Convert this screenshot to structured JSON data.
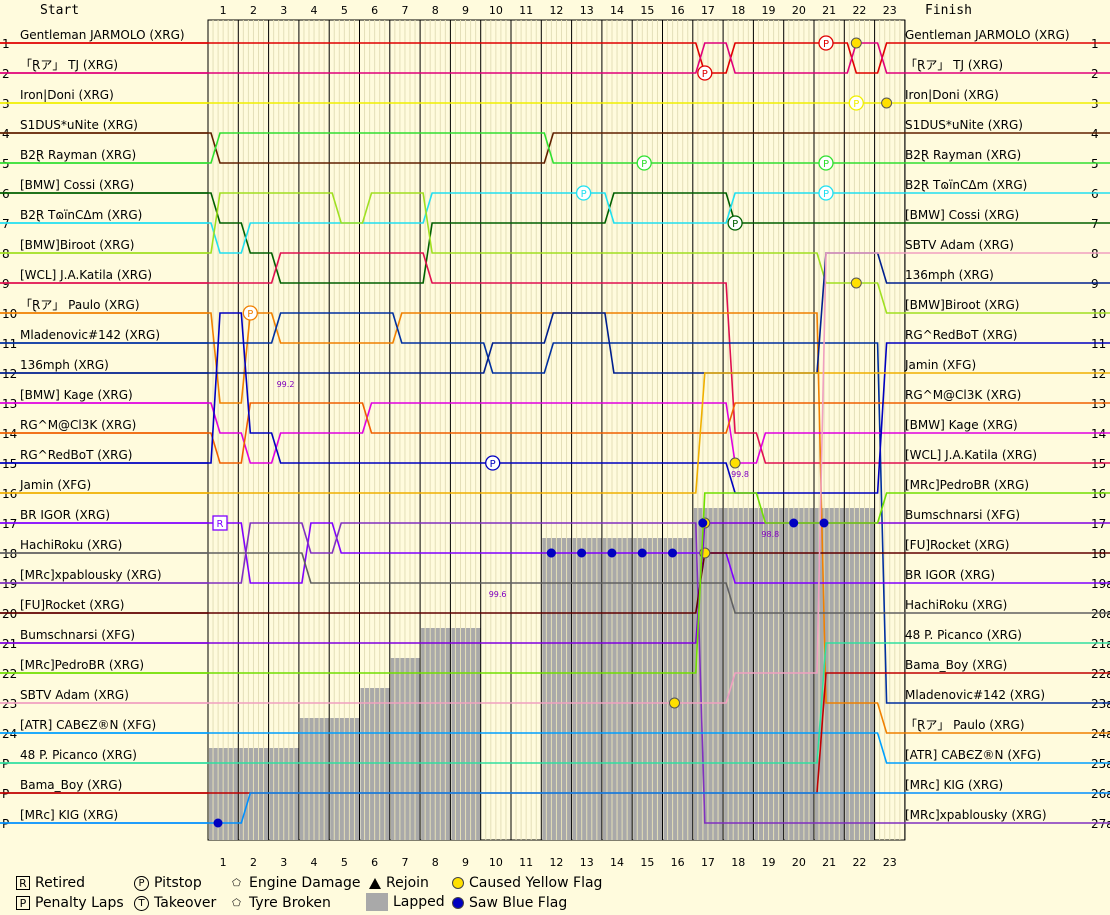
{
  "chart_data": {
    "type": "line",
    "title": "",
    "start_label": "Start",
    "finish_label": "Finish",
    "laps": [
      "1",
      "2",
      "3",
      "4",
      "5",
      "6",
      "7",
      "8",
      "9",
      "10",
      "11",
      "12",
      "13",
      "14",
      "15",
      "16",
      "17",
      "18",
      "19",
      "20",
      "21",
      "22",
      "23"
    ],
    "positions": [
      "1",
      "2",
      "3",
      "4",
      "5",
      "6",
      "7",
      "8",
      "9",
      "10",
      "11",
      "12",
      "13",
      "14",
      "15",
      "16",
      "17",
      "18",
      "19",
      "20",
      "21",
      "22",
      "23",
      "24",
      "P",
      "P",
      "P"
    ],
    "finish_positions": [
      "1",
      "2",
      "3",
      "4",
      "5",
      "6",
      "7",
      "8",
      "9",
      "10",
      "11",
      "12",
      "13",
      "14",
      "15",
      "16",
      "17",
      "18",
      "19a",
      "20a",
      "21a",
      "22a",
      "23a",
      "24a",
      "25a",
      "26a",
      "27a"
    ],
    "start_order": [
      "Gentleman JARMOLO (XRG)",
      "「Ɽア」 TJ (XRG)",
      "Iron|Doni (XRG)",
      "S1DUS*uNite (XRG)",
      "B2Ɽ Rayman (XRG)",
      "[BMW] Cossi (XRG)",
      "B2Ɽ TɷïnCΔm (XRG)",
      "[BMW]Biroot (XRG)",
      "[WCL] J.A.Katila (XRG)",
      "「Ɽア」 Paulo (XRG)",
      "Mladenovic#142 (XRG)",
      "136mph (XRG)",
      "[BMW] Kage (XRG)",
      "RG^M@Cl3K (XRG)",
      "RG^RedBoT (XRG)",
      "Jamin (XFG)",
      "BR IGOR (XRG)",
      "HachiRoku (XRG)",
      "[MRc]xpablousky (XRG)",
      "[FU]Rocket (XRG)",
      "Bumschnarsi (XFG)",
      "[MRc]PedroBR (XRG)",
      "SBTV Adam (XRG)",
      "[ATR] CABЄZ®N (XFG)",
      "48 P. Picanco (XRG)",
      "Bama_Boy (XRG)",
      "[MRc] KIG (XRG)"
    ],
    "finish_order": [
      "Gentleman JARMOLO (XRG)",
      "「Ɽア」 TJ (XRG)",
      "Iron|Doni (XRG)",
      "S1DUS*uNite (XRG)",
      "B2Ɽ Rayman (XRG)",
      "B2Ɽ TɷïnCΔm (XRG)",
      "[BMW] Cossi (XRG)",
      "SBTV Adam (XRG)",
      "136mph (XRG)",
      "[BMW]Biroot (XRG)",
      "RG^RedBoT (XRG)",
      "Jamin (XFG)",
      "RG^M@Cl3K (XRG)",
      "[BMW] Kage (XRG)",
      "[WCL] J.A.Katila (XRG)",
      "[MRc]PedroBR (XRG)",
      "Bumschnarsi (XFG)",
      "[FU]Rocket (XRG)",
      "BR IGOR (XRG)",
      "HachiRoku (XRG)",
      "48 P. Picanco (XRG)",
      "Bama_Boy (XRG)",
      "Mladenovic#142 (XRG)",
      "「Ɽア」 Paulo (XRG)",
      "[ATR] CABЄZ®N (XFG)",
      "[MRc] KIG (XRG)",
      "[MRc]xpablousky (XRG)"
    ],
    "colors": [
      "#e00000",
      "#e0007a",
      "#f0f000",
      "#602000",
      "#30e030",
      "#006000",
      "#20e0f0",
      "#a0e020",
      "#e01050",
      "#f08000",
      "#0030a0",
      "#001f8f",
      "#e000e0",
      "#f06000",
      "#0000c0",
      "#f0b000",
      "#8000ff",
      "#606060",
      "#8030c0",
      "#600000",
      "#8000e0",
      "#70e000",
      "#f0a0c0",
      "#00a0ff",
      "#30e0a0",
      "#c00000",
      "#0090ff"
    ],
    "series": [
      {
        "name": "Gentleman JARMOLO (XRG)",
        "positions": [
          1,
          1,
          1,
          1,
          1,
          1,
          1,
          1,
          1,
          1,
          1,
          1,
          1,
          1,
          1,
          1,
          2,
          1,
          1,
          1,
          1,
          2,
          1
        ],
        "events": [
          {
            "lap": 17,
            "type": "pitstop"
          },
          {
            "lap": 21,
            "type": "pitstop"
          }
        ]
      },
      {
        "name": "「Ɽア」 TJ (XRG)",
        "positions": [
          2,
          2,
          2,
          2,
          2,
          2,
          2,
          2,
          2,
          2,
          2,
          2,
          2,
          2,
          2,
          2,
          1,
          2,
          2,
          2,
          2,
          1,
          2
        ],
        "events": [
          {
            "lap": 22,
            "type": "caused_yellow"
          }
        ]
      },
      {
        "name": "Iron|Doni (XRG)",
        "positions": [
          3,
          3,
          3,
          3,
          3,
          3,
          3,
          3,
          3,
          3,
          3,
          3,
          3,
          3,
          3,
          3,
          3,
          3,
          3,
          3,
          3,
          3,
          3
        ],
        "events": [
          {
            "lap": 22,
            "type": "pitstop"
          },
          {
            "lap": 23,
            "type": "caused_yellow"
          }
        ]
      },
      {
        "name": "S1DUS*uNite (XRG)",
        "positions": [
          5,
          5,
          5,
          5,
          5,
          5,
          5,
          5,
          5,
          5,
          5,
          4,
          4,
          4,
          4,
          4,
          4,
          4,
          4,
          4,
          4,
          4,
          4
        ],
        "events": []
      },
      {
        "name": "B2Ɽ Rayman (XRG)",
        "positions": [
          4,
          4,
          4,
          4,
          4,
          4,
          4,
          4,
          4,
          4,
          4,
          5,
          5,
          5,
          5,
          5,
          5,
          5,
          5,
          5,
          5,
          5,
          5
        ],
        "events": [
          {
            "lap": 15,
            "type": "pitstop"
          },
          {
            "lap": 21,
            "type": "pitstop"
          }
        ]
      },
      {
        "name": "[BMW] Cossi (XRG)",
        "positions": [
          7,
          8,
          9,
          9,
          9,
          9,
          9,
          7,
          7,
          7,
          7,
          7,
          7,
          6,
          6,
          6,
          6,
          7,
          7,
          7,
          7,
          7,
          7
        ],
        "events": [
          {
            "lap": 18,
            "type": "pitstop"
          }
        ]
      },
      {
        "name": "B2Ɽ TɷïnCΔm (XRG)",
        "positions": [
          8,
          7,
          7,
          7,
          7,
          7,
          7,
          6,
          6,
          6,
          6,
          6,
          6,
          7,
          7,
          7,
          7,
          6,
          6,
          6,
          6,
          6,
          6
        ],
        "events": [
          {
            "lap": 13,
            "type": "pitstop"
          },
          {
            "lap": 21,
            "type": "pitstop"
          }
        ]
      },
      {
        "name": "[BMW]Biroot (XRG)",
        "positions": [
          6,
          6,
          6,
          6,
          7,
          6,
          6,
          8,
          8,
          8,
          8,
          8,
          8,
          8,
          8,
          8,
          8,
          8,
          8,
          8,
          9,
          9,
          10
        ],
        "events": [
          {
            "lap": 22,
            "type": "caused_yellow"
          }
        ]
      },
      {
        "name": "[WCL] J.A.Katila (XRG)",
        "positions": [
          9,
          9,
          8,
          8,
          8,
          8,
          8,
          9,
          9,
          9,
          9,
          9,
          9,
          9,
          9,
          9,
          9,
          14,
          15,
          15,
          15,
          15,
          15
        ],
        "events": []
      },
      {
        "name": "「Ɽア」 Paulo (XRG)",
        "positions": [
          13,
          10,
          11,
          11,
          11,
          11,
          10,
          10,
          10,
          10,
          10,
          10,
          10,
          10,
          10,
          10,
          10,
          10,
          10,
          10,
          23,
          23,
          24
        ],
        "events": [
          {
            "lap": 2,
            "type": "pitstop"
          }
        ]
      },
      {
        "name": "Mladenovic#142 (XRG)",
        "positions": [
          11,
          11,
          10,
          10,
          10,
          10,
          11,
          11,
          11,
          12,
          12,
          11,
          11,
          11,
          11,
          11,
          11,
          11,
          11,
          11,
          11,
          11,
          23
        ],
        "events": []
      },
      {
        "name": "136mph (XRG)",
        "positions": [
          12,
          12,
          12,
          12,
          12,
          12,
          12,
          12,
          12,
          11,
          11,
          10,
          10,
          12,
          12,
          12,
          12,
          12,
          12,
          12,
          8,
          8,
          9
        ],
        "events": []
      },
      {
        "name": "[BMW] Kage (XRG)",
        "positions": [
          14,
          15,
          14,
          14,
          14,
          13,
          13,
          13,
          13,
          13,
          13,
          13,
          13,
          13,
          13,
          13,
          13,
          15,
          14,
          14,
          14,
          14,
          14
        ],
        "events": [
          {
            "lap": 18,
            "type": "caused_yellow"
          }
        ]
      },
      {
        "name": "RG^M@Cl3K (XRG)",
        "positions": [
          15,
          13,
          13,
          13,
          13,
          14,
          14,
          14,
          14,
          14,
          14,
          14,
          14,
          14,
          14,
          14,
          14,
          13,
          13,
          13,
          13,
          13,
          13
        ],
        "events": []
      },
      {
        "name": "RG^RedBoT (XRG)",
        "positions": [
          10,
          14,
          15,
          15,
          15,
          15,
          15,
          15,
          15,
          15,
          15,
          15,
          15,
          15,
          15,
          15,
          15,
          16,
          16,
          16,
          16,
          16,
          11
        ],
        "events": [
          {
            "lap": 10,
            "type": "pitstop"
          }
        ]
      },
      {
        "name": "Jamin (XFG)",
        "positions": [
          16,
          16,
          16,
          16,
          16,
          16,
          16,
          16,
          16,
          16,
          16,
          16,
          16,
          16,
          16,
          16,
          12,
          12,
          12,
          12,
          12,
          12,
          12
        ],
        "events": []
      },
      {
        "name": "BR IGOR (XRG)",
        "positions": [
          17,
          19,
          19,
          17,
          18,
          18,
          18,
          18,
          18,
          18,
          18,
          18,
          18,
          18,
          18,
          18,
          18,
          19,
          19,
          19,
          19,
          19,
          19
        ],
        "events": [
          {
            "lap": 1,
            "type": "retired"
          }
        ]
      },
      {
        "name": "HachiRoku (XRG)",
        "positions": [
          18,
          18,
          18,
          19,
          19,
          19,
          19,
          19,
          19,
          19,
          19,
          19,
          19,
          19,
          19,
          19,
          19,
          20,
          20,
          20,
          20,
          20,
          20
        ],
        "events": []
      },
      {
        "name": "[MRc]xpablousky (XRG)",
        "positions": [
          19,
          17,
          17,
          18,
          17,
          17,
          17,
          17,
          17,
          17,
          17,
          17,
          17,
          17,
          17,
          17,
          27,
          27,
          27,
          27,
          27,
          27,
          27
        ],
        "events": []
      },
      {
        "name": "[FU]Rocket (XRG)",
        "positions": [
          20,
          20,
          20,
          20,
          20,
          20,
          20,
          20,
          20,
          20,
          20,
          20,
          20,
          20,
          20,
          20,
          18,
          18,
          18,
          18,
          18,
          18,
          18
        ],
        "events": [
          {
            "lap": 17,
            "type": "caused_yellow"
          }
        ]
      },
      {
        "name": "Bumschnarsi (XFG)",
        "positions": [
          21,
          21,
          21,
          21,
          21,
          21,
          21,
          21,
          21,
          21,
          21,
          21,
          21,
          21,
          21,
          21,
          17,
          17,
          17,
          17,
          17,
          17,
          17
        ],
        "events": [
          {
            "lap": 17,
            "type": "caused_yellow"
          }
        ]
      },
      {
        "name": "[MRc]PedroBR (XRG)",
        "positions": [
          22,
          22,
          22,
          22,
          22,
          22,
          22,
          22,
          22,
          22,
          22,
          22,
          22,
          22,
          22,
          22,
          16,
          16,
          17,
          17,
          17,
          17,
          16
        ],
        "events": []
      },
      {
        "name": "SBTV Adam (XRG)",
        "positions": [
          23,
          23,
          23,
          23,
          23,
          23,
          23,
          23,
          23,
          23,
          23,
          23,
          23,
          23,
          23,
          23,
          23,
          22,
          22,
          22,
          8,
          8,
          8
        ],
        "events": [
          {
            "lap": 16,
            "type": "caused_yellow"
          }
        ]
      },
      {
        "name": "[ATR] CABЄZ®N (XFG)",
        "positions": [
          24,
          24,
          24,
          24,
          24,
          24,
          24,
          24,
          24,
          24,
          24,
          24,
          24,
          24,
          24,
          24,
          24,
          24,
          24,
          24,
          24,
          24,
          25
        ],
        "events": []
      },
      {
        "name": "48 P. Picanco (XRG)",
        "positions": [
          25,
          25,
          25,
          25,
          25,
          25,
          25,
          25,
          25,
          25,
          25,
          25,
          25,
          25,
          25,
          25,
          25,
          25,
          25,
          25,
          21,
          21,
          21
        ],
        "events": []
      },
      {
        "name": "Bama_Boy (XRG)",
        "positions": [
          26,
          26,
          26,
          26,
          26,
          26,
          26,
          26,
          26,
          26,
          26,
          26,
          26,
          26,
          26,
          26,
          26,
          26,
          26,
          26,
          22,
          22,
          22
        ],
        "events": []
      },
      {
        "name": "[MRc] KIG (XRG)",
        "positions": [
          27,
          26,
          26,
          26,
          26,
          26,
          26,
          26,
          26,
          26,
          26,
          26,
          26,
          26,
          26,
          26,
          26,
          26,
          26,
          26,
          26,
          26,
          26
        ],
        "events": []
      }
    ],
    "annotations": [
      {
        "text": "99.2",
        "lap": 3,
        "position": 12
      },
      {
        "text": "99.6",
        "lap": 10,
        "position": 19
      },
      {
        "text": "99.8",
        "lap": 18,
        "position": 15
      },
      {
        "text": "98.8",
        "lap": 19,
        "position": 17
      }
    ],
    "lapped_region": [
      {
        "lap": 1,
        "positions_from": 25
      },
      {
        "lap": 2,
        "positions_from": 25
      },
      {
        "lap": 3,
        "positions_from": 25
      },
      {
        "lap": 4,
        "positions_from": 24
      },
      {
        "lap": 5,
        "positions_from": 24
      },
      {
        "lap": 6,
        "positions_from": 23
      },
      {
        "lap": 7,
        "positions_from": 22
      },
      {
        "lap": 8,
        "positions_from": 21
      },
      {
        "lap": 9,
        "positions_from": 21
      },
      {
        "lap": 12,
        "positions_from": 18
      },
      {
        "lap": 13,
        "positions_from": 18
      },
      {
        "lap": 14,
        "positions_from": 18
      },
      {
        "lap": 15,
        "positions_from": 18
      },
      {
        "lap": 16,
        "positions_from": 18
      },
      {
        "lap": 17,
        "positions_from": 17
      },
      {
        "lap": 18,
        "positions_from": 17
      },
      {
        "lap": 19,
        "positions_from": 17
      },
      {
        "lap": 20,
        "positions_from": 17
      },
      {
        "lap": 21,
        "positions_from": 17
      },
      {
        "lap": 22,
        "positions_from": 17
      }
    ],
    "blue_flags": [
      {
        "lap": 1,
        "position": 27
      },
      {
        "lap": 12,
        "position": 18
      },
      {
        "lap": 12,
        "position": 18
      },
      {
        "lap": 13,
        "position": 18
      },
      {
        "lap": 14,
        "position": 18
      },
      {
        "lap": 15,
        "position": 18
      },
      {
        "lap": 16,
        "position": 18
      },
      {
        "lap": 17,
        "position": 17
      },
      {
        "lap": 20,
        "position": 17
      },
      {
        "lap": 21,
        "position": 17
      }
    ],
    "legend": [
      {
        "symbol": "R",
        "label": "Retired"
      },
      {
        "symbol": "P",
        "label": "Penalty Laps"
      },
      {
        "symbol": "P",
        "label": "Pitstop"
      },
      {
        "symbol": "T",
        "label": "Takeover"
      },
      {
        "symbol": "E",
        "label": "Engine Damage"
      },
      {
        "symbol": "T",
        "label": "Tyre Broken"
      },
      {
        "symbol": "triangle",
        "label": "Rejoin"
      },
      {
        "symbol": "grey",
        "label": "Lapped"
      },
      {
        "symbol": "yellow-dot",
        "label": "Caused Yellow Flag"
      },
      {
        "symbol": "blue-dot",
        "label": "Saw Blue Flag"
      }
    ],
    "colors_meta": {
      "background": "#fffbdd",
      "lapped": "#a9a9a9",
      "yellow_flag": "#ffe000",
      "blue_flag": "#0000c0"
    }
  }
}
